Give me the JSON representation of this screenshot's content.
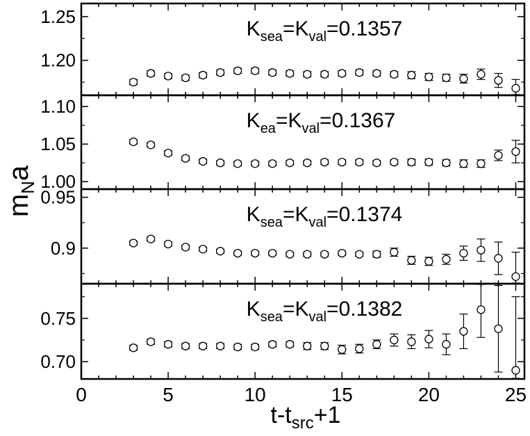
{
  "chart_data": {
    "type": "scatter",
    "xlabel": {
      "main": "t-t",
      "sub": "src",
      "suffix": "+1"
    },
    "ylabel": {
      "main": "m",
      "sub": "N",
      "suffix": "a"
    },
    "xlim": [
      0,
      25.5
    ],
    "xticks": [
      0,
      5,
      10,
      15,
      20,
      25
    ],
    "xtick_labels": [
      "0",
      "5",
      "10",
      "15",
      "20",
      "25"
    ],
    "panels": [
      {
        "label": {
          "k1": "K",
          "s1": "sea",
          "mid": "=K",
          "s2": "val",
          "val": "=0.1357"
        },
        "ylim": [
          1.16,
          1.265
        ],
        "yticks": [
          1.2,
          1.25
        ],
        "ytick_labels": [
          "1.20",
          "1.25"
        ],
        "x": [
          3,
          4,
          5,
          6,
          7,
          8,
          9,
          10,
          11,
          12,
          13,
          14,
          15,
          16,
          17,
          18,
          19,
          20,
          21,
          22,
          23,
          24,
          25
        ],
        "y": [
          1.175,
          1.185,
          1.182,
          1.18,
          1.183,
          1.186,
          1.188,
          1.188,
          1.186,
          1.185,
          1.184,
          1.184,
          1.185,
          1.186,
          1.185,
          1.184,
          1.183,
          1.181,
          1.18,
          1.179,
          1.184,
          1.177,
          1.168
        ],
        "err": [
          0.003,
          0.003,
          0.003,
          0.003,
          0.003,
          0.003,
          0.003,
          0.003,
          0.003,
          0.003,
          0.003,
          0.003,
          0.003,
          0.003,
          0.003,
          0.003,
          0.004,
          0.004,
          0.004,
          0.005,
          0.006,
          0.008,
          0.01
        ]
      },
      {
        "label": {
          "k1": "K",
          "s1": "ea",
          "mid": "=K",
          "s2": "val",
          "val": "=0.1367"
        },
        "ylim": [
          0.99,
          1.115
        ],
        "yticks": [
          1.0,
          1.05,
          1.1
        ],
        "ytick_labels": [
          "1.00",
          "1.05",
          "1.10"
        ],
        "x": [
          3,
          4,
          5,
          6,
          7,
          8,
          9,
          10,
          11,
          12,
          13,
          14,
          15,
          16,
          17,
          18,
          19,
          20,
          21,
          22,
          23,
          24,
          25
        ],
        "y": [
          1.053,
          1.049,
          1.038,
          1.031,
          1.027,
          1.025,
          1.024,
          1.024,
          1.024,
          1.025,
          1.025,
          1.026,
          1.026,
          1.026,
          1.025,
          1.026,
          1.026,
          1.026,
          1.025,
          1.024,
          1.024,
          1.035,
          1.04
        ],
        "err": [
          0.003,
          0.003,
          0.003,
          0.003,
          0.003,
          0.003,
          0.003,
          0.003,
          0.003,
          0.003,
          0.003,
          0.003,
          0.003,
          0.003,
          0.003,
          0.003,
          0.004,
          0.004,
          0.004,
          0.005,
          0.005,
          0.007,
          0.015
        ]
      },
      {
        "label": {
          "k1": "K",
          "s1": "sea",
          "mid": "=K",
          "s2": "val",
          "val": "=0.1374"
        },
        "ylim": [
          0.865,
          0.958
        ],
        "yticks": [
          0.9,
          0.95
        ],
        "ytick_labels": [
          "0.9",
          "0.95"
        ],
        "x": [
          3,
          4,
          5,
          6,
          7,
          8,
          9,
          10,
          11,
          12,
          13,
          14,
          15,
          16,
          17,
          18,
          19,
          20,
          21,
          22,
          23,
          24,
          25
        ],
        "y": [
          0.905,
          0.909,
          0.904,
          0.901,
          0.899,
          0.897,
          0.895,
          0.895,
          0.895,
          0.894,
          0.894,
          0.894,
          0.895,
          0.894,
          0.894,
          0.896,
          0.888,
          0.887,
          0.889,
          0.895,
          0.898,
          0.89,
          0.872
        ],
        "err": [
          0.002,
          0.002,
          0.002,
          0.002,
          0.002,
          0.002,
          0.002,
          0.002,
          0.002,
          0.002,
          0.002,
          0.002,
          0.002,
          0.002,
          0.003,
          0.004,
          0.004,
          0.004,
          0.005,
          0.007,
          0.011,
          0.016,
          0.024
        ]
      },
      {
        "label": {
          "k1": "K",
          "s1": "sea",
          "mid": "=K",
          "s2": "val",
          "val": "=0.1382"
        },
        "ylim": [
          0.68,
          0.79
        ],
        "yticks": [
          0.7,
          0.75
        ],
        "ytick_labels": [
          "0.70",
          "0.75"
        ],
        "x": [
          3,
          4,
          5,
          6,
          7,
          8,
          9,
          10,
          11,
          12,
          13,
          14,
          15,
          16,
          17,
          18,
          19,
          20,
          21,
          22,
          23,
          24,
          25
        ],
        "y": [
          0.716,
          0.723,
          0.72,
          0.718,
          0.718,
          0.718,
          0.717,
          0.717,
          0.72,
          0.72,
          0.718,
          0.718,
          0.714,
          0.715,
          0.72,
          0.725,
          0.723,
          0.726,
          0.72,
          0.735,
          0.76,
          0.738,
          0.69
        ],
        "err": [
          0.003,
          0.003,
          0.003,
          0.003,
          0.003,
          0.003,
          0.003,
          0.003,
          0.003,
          0.003,
          0.004,
          0.004,
          0.005,
          0.005,
          0.005,
          0.007,
          0.008,
          0.01,
          0.012,
          0.02,
          0.032,
          0.05,
          0.085
        ]
      }
    ]
  }
}
